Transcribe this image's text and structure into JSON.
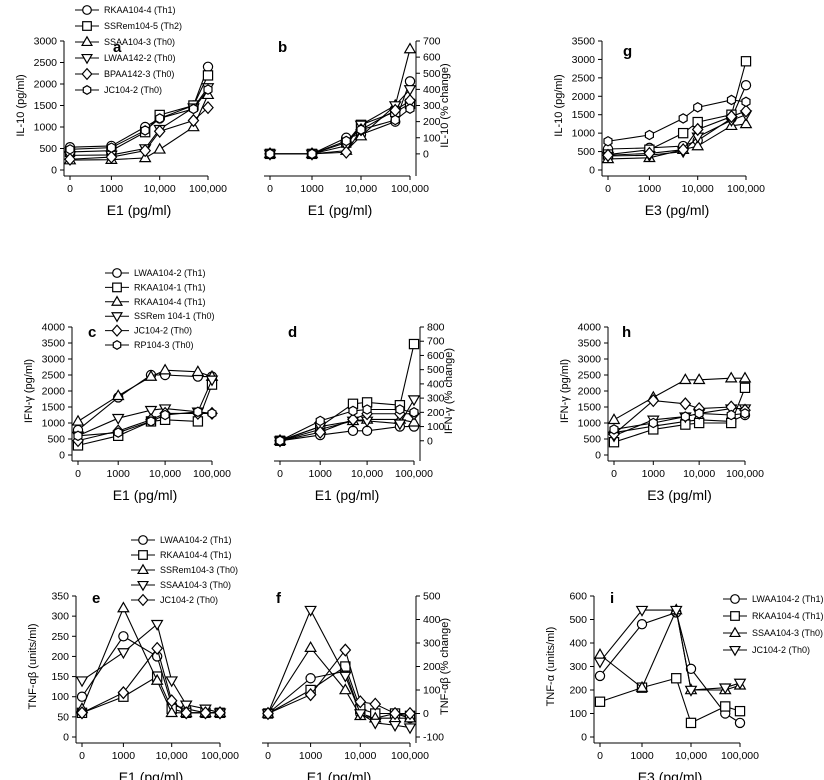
{
  "colors": {
    "ink": "#000000",
    "marker_fill": "#ffffff",
    "background": "#ffffff"
  },
  "chart_data": [
    {
      "id": "a",
      "type": "line",
      "label": "a",
      "xlabel": "E1 (pg/ml)",
      "ylabel": "IL-10 (pg/ml)",
      "x": [
        0,
        1000,
        5000,
        10000,
        50000,
        100000
      ],
      "xticks": [
        "0",
        "1000",
        "10,000",
        "100,000"
      ],
      "ylim": [
        0,
        3000
      ],
      "yticks": [
        0,
        500,
        1000,
        1500,
        2000,
        2500,
        3000
      ],
      "legend": "top-left",
      "series": [
        {
          "name": "RKAA104-4 (Th1)",
          "marker": "circle",
          "values": [
            530,
            560,
            1000,
            1200,
            1500,
            2400
          ]
        },
        {
          "name": "SSRem104-5 (Th2)",
          "marker": "square",
          "values": [
            420,
            450,
            880,
            1280,
            1500,
            2200
          ]
        },
        {
          "name": "SSAA104-3 (Th0)",
          "marker": "triangle-up",
          "values": [
            230,
            240,
            280,
            480,
            1000,
            1750
          ]
        },
        {
          "name": "LWAA142-2 (Th0)",
          "marker": "triangle-down",
          "values": [
            340,
            350,
            500,
            950,
            1450,
            1920
          ]
        },
        {
          "name": "BPAA142-3 (Th0)",
          "marker": "diamond",
          "values": [
            250,
            300,
            450,
            900,
            1150,
            1450
          ]
        },
        {
          "name": "JC104-2 (Th0)",
          "marker": "hexagon",
          "values": [
            480,
            520,
            920,
            1200,
            1420,
            1870
          ]
        }
      ]
    },
    {
      "id": "b",
      "type": "line",
      "label": "b",
      "xlabel": "E1 (pg/ml)",
      "ylabel": "IL-10 (% change)",
      "x": [
        0,
        1000,
        5000,
        10000,
        50000,
        100000
      ],
      "xticks": [
        "0",
        "1000",
        "10,000",
        "100,000"
      ],
      "ylim": [
        -100,
        700
      ],
      "yticks": [
        0,
        100,
        200,
        300,
        400,
        500,
        600,
        700
      ],
      "yaxis_side": "right",
      "series": [
        {
          "name": "RKAA104-4 (Th1)",
          "marker": "circle",
          "values": [
            0,
            0,
            100,
            120,
            200,
            450
          ]
        },
        {
          "name": "SSRem104-5 (Th2)",
          "marker": "square",
          "values": [
            0,
            0,
            70,
            180,
            260,
            310
          ]
        },
        {
          "name": "SSAA104-3 (Th0)",
          "marker": "triangle-up",
          "values": [
            0,
            0,
            20,
            110,
            300,
            650
          ]
        },
        {
          "name": "LWAA142-2 (Th0)",
          "marker": "triangle-down",
          "values": [
            0,
            0,
            50,
            180,
            300,
            400
          ]
        },
        {
          "name": "BPAA142-3 (Th0)",
          "marker": "diamond",
          "values": [
            0,
            0,
            10,
            150,
            270,
            330
          ]
        },
        {
          "name": "JC104-2 (Th0)",
          "marker": "hexagon",
          "values": [
            0,
            0,
            80,
            150,
            210,
            280
          ]
        }
      ]
    },
    {
      "id": "g",
      "type": "line",
      "label": "g",
      "xlabel": "E3 (pg/ml)",
      "ylabel": "IL-10 (pg/ml)",
      "x": [
        0,
        1000,
        5000,
        10000,
        50000,
        100000
      ],
      "xticks": [
        "0",
        "1000",
        "10,000",
        "100,000"
      ],
      "ylim": [
        0,
        3500
      ],
      "yticks": [
        0,
        500,
        1000,
        1500,
        2000,
        2500,
        3000,
        3500
      ],
      "series": [
        {
          "name": "RKAA104-4 (Th1)",
          "marker": "circle",
          "values": [
            570,
            600,
            650,
            800,
            1400,
            2300
          ]
        },
        {
          "name": "SSRem104-5 (Th2)",
          "marker": "square",
          "values": [
            420,
            550,
            1000,
            1300,
            1500,
            2950
          ]
        },
        {
          "name": "SSAA104-3 (Th0)",
          "marker": "triangle-up",
          "values": [
            300,
            330,
            550,
            650,
            1200,
            1250
          ]
        },
        {
          "name": "LWAA142-2 (Th0)",
          "marker": "triangle-down",
          "values": [
            380,
            400,
            500,
            900,
            1350,
            1500
          ]
        },
        {
          "name": "BPAA142-3 (Th0)",
          "marker": "diamond",
          "values": [
            400,
            450,
            550,
            1100,
            1450,
            1600
          ]
        },
        {
          "name": "JC104-2 (Th0)",
          "marker": "hexagon",
          "values": [
            780,
            950,
            1400,
            1700,
            1900,
            1850
          ]
        }
      ]
    },
    {
      "id": "c",
      "type": "line",
      "label": "c",
      "xlabel": "E1 (pg/ml)",
      "ylabel": "IFN-γ (pg/ml)",
      "x": [
        0,
        1000,
        5000,
        10000,
        50000,
        100000
      ],
      "xticks": [
        "0",
        "1000",
        "10,000",
        "100,000"
      ],
      "ylim": [
        0,
        4000
      ],
      "yticks": [
        0,
        500,
        1000,
        1500,
        2000,
        2500,
        3000,
        3500,
        4000
      ],
      "legend": "top-left",
      "series": [
        {
          "name": "LWAA104-2 (Th1)",
          "marker": "circle",
          "values": [
            780,
            1800,
            2500,
            2500,
            2450,
            2450
          ]
        },
        {
          "name": "RKAA104-1 (Th1)",
          "marker": "square",
          "values": [
            300,
            600,
            1050,
            1100,
            1050,
            2200
          ]
        },
        {
          "name": "RKAA104-4 (Th1)",
          "marker": "triangle-up",
          "values": [
            1050,
            1850,
            2450,
            2650,
            2600,
            2450
          ]
        },
        {
          "name": "SSRem 104-1 (Th0)",
          "marker": "triangle-down",
          "values": [
            600,
            1150,
            1400,
            1450,
            1350,
            2350
          ]
        },
        {
          "name": "JC104-2 (Th0)",
          "marker": "diamond",
          "values": [
            450,
            750,
            1100,
            1300,
            1300,
            1300
          ]
        },
        {
          "name": "RP104-3 (Th0)",
          "marker": "hexagon",
          "values": [
            600,
            700,
            1050,
            1250,
            1350,
            1300
          ]
        }
      ]
    },
    {
      "id": "d",
      "type": "line",
      "label": "d",
      "xlabel": "E1 (pg/ml)",
      "ylabel": "IFN-γ (% change)",
      "x": [
        0,
        1000,
        5000,
        10000,
        50000,
        100000
      ],
      "xticks": [
        "0",
        "1000",
        "10,000",
        "100,000"
      ],
      "ylim": [
        -100,
        800
      ],
      "yticks": [
        0,
        100,
        200,
        300,
        400,
        500,
        600,
        700,
        800
      ],
      "yaxis_side": "right",
      "series": [
        {
          "name": "LWAA104-2 (Th1)",
          "marker": "circle",
          "values": [
            0,
            40,
            70,
            70,
            100,
            100
          ]
        },
        {
          "name": "RKAA104-1 (Th1)",
          "marker": "square",
          "values": [
            0,
            100,
            260,
            270,
            250,
            680
          ]
        },
        {
          "name": "RKAA104-4 (Th1)",
          "marker": "triangle-up",
          "values": [
            0,
            80,
            140,
            150,
            150,
            130
          ]
        },
        {
          "name": "SSRem 104-1 (Th0)",
          "marker": "triangle-down",
          "values": [
            0,
            100,
            140,
            140,
            120,
            290
          ]
        },
        {
          "name": "JC104-2 (Th0)",
          "marker": "diamond",
          "values": [
            0,
            60,
            150,
            190,
            190,
            190
          ]
        },
        {
          "name": "RP104-3 (Th0)",
          "marker": "hexagon",
          "values": [
            0,
            140,
            210,
            220,
            220,
            200
          ]
        }
      ]
    },
    {
      "id": "h",
      "type": "line",
      "label": "h",
      "xlabel": "E3 (pg/ml)",
      "ylabel": "IFN-γ (pg/ml)",
      "x": [
        0,
        1000,
        5000,
        10000,
        50000,
        100000
      ],
      "xticks": [
        "0",
        "1000",
        "10,000",
        "100,000"
      ],
      "ylim": [
        0,
        4000
      ],
      "yticks": [
        0,
        500,
        1000,
        1500,
        2000,
        2500,
        3000,
        3500,
        4000
      ],
      "series": [
        {
          "name": "LWAA104-2 (Th1)",
          "marker": "circle",
          "values": [
            700,
            900,
            1050,
            1100,
            1050,
            1250
          ]
        },
        {
          "name": "RKAA104-1 (Th1)",
          "marker": "square",
          "values": [
            400,
            800,
            950,
            1000,
            1000,
            2100
          ]
        },
        {
          "name": "RKAA104-4 (Th1)",
          "marker": "triangle-up",
          "values": [
            1100,
            1800,
            2350,
            2350,
            2400,
            2400
          ]
        },
        {
          "name": "SSRem 104-1 (Th0)",
          "marker": "triangle-down",
          "values": [
            600,
            1100,
            1200,
            1300,
            1450,
            1450
          ]
        },
        {
          "name": "JC104-2 (Th0)",
          "marker": "diamond",
          "values": [
            650,
            1700,
            1600,
            1450,
            1500,
            1400
          ]
        },
        {
          "name": "RP104-3 (Th0)",
          "marker": "hexagon",
          "values": [
            800,
            1000,
            1200,
            1300,
            1250,
            1300
          ]
        }
      ]
    },
    {
      "id": "e",
      "type": "line",
      "label": "e",
      "xlabel": "E1 (pg/ml)",
      "ylabel": "TNF-αβ (units/ml)",
      "x": [
        0,
        1000,
        5000,
        10000,
        20000,
        50000,
        100000
      ],
      "xticks": [
        "0",
        "1000",
        "10,000",
        "100,000"
      ],
      "ylim": [
        0,
        350
      ],
      "yticks": [
        0,
        50,
        100,
        150,
        200,
        250,
        300,
        350
      ],
      "legend": "top-left",
      "series": [
        {
          "name": "LWAA104-2 (Th1)",
          "marker": "circle",
          "values": [
            100,
            250,
            200,
            80,
            70,
            60,
            60
          ]
        },
        {
          "name": "RKAA104-4 (Th1)",
          "marker": "square",
          "values": [
            60,
            100,
            150,
            70,
            60,
            60,
            60
          ]
        },
        {
          "name": "SSRem104-3 (Th0)",
          "marker": "triangle-up",
          "values": [
            70,
            320,
            140,
            60,
            60,
            60,
            60
          ]
        },
        {
          "name": "SSAA104-3 (Th0)",
          "marker": "triangle-down",
          "values": [
            140,
            210,
            280,
            140,
            80,
            70,
            60
          ]
        },
        {
          "name": "JC104-2 (Th0)",
          "marker": "diamond",
          "values": [
            60,
            110,
            220,
            90,
            60,
            60,
            60
          ]
        }
      ]
    },
    {
      "id": "f",
      "type": "line",
      "label": "f",
      "xlabel": "E1 (pg/ml)",
      "ylabel": "TNF-αβ (% change)",
      "x": [
        0,
        1000,
        5000,
        10000,
        20000,
        50000,
        100000
      ],
      "xticks": [
        "0",
        "1000",
        "10,000",
        "100,000"
      ],
      "ylim": [
        -100,
        500
      ],
      "yticks": [
        -100,
        0,
        100,
        200,
        300,
        400,
        500
      ],
      "yaxis_side": "right",
      "series": [
        {
          "name": "LWAA104-2 (Th1)",
          "marker": "circle",
          "values": [
            0,
            150,
            180,
            0,
            -20,
            0,
            -20
          ]
        },
        {
          "name": "RKAA104-4 (Th1)",
          "marker": "square",
          "values": [
            0,
            100,
            200,
            20,
            0,
            0,
            -10
          ]
        },
        {
          "name": "SSRem104-3 (Th0)",
          "marker": "triangle-up",
          "values": [
            0,
            280,
            100,
            -10,
            -20,
            -20,
            -20
          ]
        },
        {
          "name": "SSAA104-3 (Th0)",
          "marker": "triangle-down",
          "values": [
            0,
            440,
            160,
            0,
            -40,
            -50,
            -60
          ]
        },
        {
          "name": "JC104-2 (Th0)",
          "marker": "diamond",
          "values": [
            0,
            80,
            270,
            50,
            40,
            0,
            0
          ]
        }
      ]
    },
    {
      "id": "i",
      "type": "line",
      "label": "i",
      "xlabel": "E3 (pg/ml)",
      "ylabel": "TNF-α (units/ml)",
      "x": [
        0,
        1000,
        5000,
        10000,
        50000,
        100000
      ],
      "xticks": [
        "0",
        "1000",
        "10,000",
        "100,000"
      ],
      "ylim": [
        0,
        600
      ],
      "yticks": [
        0,
        100,
        200,
        300,
        400,
        500,
        600
      ],
      "legend": "right",
      "series": [
        {
          "name": "LWAA104-2 (Th1)",
          "marker": "circle",
          "values": [
            260,
            480,
            530,
            290,
            100,
            60
          ]
        },
        {
          "name": "RKAA104-4 (Th1)",
          "marker": "square",
          "values": [
            150,
            210,
            250,
            60,
            130,
            110
          ]
        },
        {
          "name": "SSAA104-3 (Th0)",
          "marker": "triangle-up",
          "values": [
            350,
            210,
            540,
            200,
            200,
            220
          ]
        },
        {
          "name": "JC104-2 (Th0)",
          "marker": "triangle-down",
          "values": [
            320,
            540,
            540,
            200,
            210,
            230
          ]
        }
      ]
    }
  ]
}
